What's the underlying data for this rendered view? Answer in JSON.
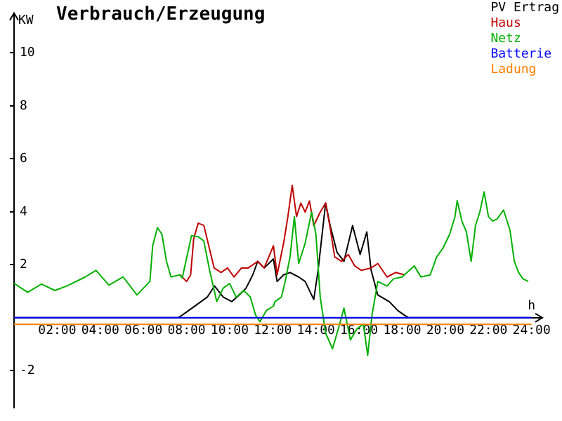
{
  "chart_data": {
    "type": "line",
    "title": "Verbrauch/Erzeugung",
    "xlabel": "h",
    "ylabel": "KW",
    "legend": "top right",
    "marker": "none",
    "xlim": [
      0,
      24.5
    ],
    "ylim": [
      -3.4,
      11.5
    ],
    "xticks": [
      {
        "value": 2,
        "label": "02:00"
      },
      {
        "value": 4,
        "label": "04:00"
      },
      {
        "value": 6,
        "label": "06:00"
      },
      {
        "value": 8,
        "label": "08:00"
      },
      {
        "value": 10,
        "label": "10:00"
      },
      {
        "value": 12,
        "label": "12:00"
      },
      {
        "value": 14,
        "label": "14:00"
      },
      {
        "value": 16,
        "label": "16:00"
      },
      {
        "value": 18,
        "label": "18:00"
      },
      {
        "value": 20,
        "label": "20:00"
      },
      {
        "value": 22,
        "label": "22:00"
      },
      {
        "value": 24,
        "label": "24:00"
      }
    ],
    "yticks": [
      -2,
      2,
      4,
      6,
      8,
      10
    ],
    "series": [
      {
        "name": "PV Ertrag",
        "color": "#000000",
        "x": [
          0,
          7.6,
          7.8,
          8.4,
          8.96,
          9.3,
          9.7,
          10.1,
          10.44,
          10.76,
          11.07,
          11.3,
          11.6,
          12.03,
          12.2,
          12.5,
          12.8,
          13.2,
          13.5,
          13.9,
          14.1,
          14.45,
          14.66,
          14.98,
          15.3,
          15.7,
          16.05,
          16.36,
          16.56,
          16.87,
          17.4,
          17.8,
          18.1,
          18.3,
          24
        ],
        "values": [
          0,
          0,
          0.1,
          0.45,
          0.78,
          1.2,
          0.78,
          0.61,
          0.86,
          1.12,
          1.62,
          2.13,
          1.88,
          2.22,
          1.37,
          1.62,
          1.71,
          1.54,
          1.37,
          0.69,
          1.79,
          4.33,
          3.48,
          2.47,
          2.13,
          3.48,
          2.39,
          3.24,
          1.79,
          0.86,
          0.61,
          0.27,
          0.1,
          0,
          0
        ]
      },
      {
        "name": "Haus",
        "color": "#c00000",
        "x": [
          7.7,
          8.0,
          8.19,
          8.33,
          8.54,
          8.8,
          9.03,
          9.28,
          9.6,
          9.9,
          10.2,
          10.55,
          10.86,
          11.3,
          11.6,
          12.03,
          12.2,
          12.5,
          12.7,
          12.9,
          13.1,
          13.3,
          13.5,
          13.7,
          13.9,
          14.2,
          14.45,
          14.66,
          14.87,
          15.19,
          15.5,
          15.8,
          16.1,
          16.56,
          16.87,
          17.3,
          17.7,
          18.1
        ],
        "values": [
          1.62,
          1.37,
          1.62,
          2.98,
          3.57,
          3.49,
          2.72,
          1.88,
          1.71,
          1.88,
          1.54,
          1.88,
          1.88,
          2.13,
          1.88,
          2.72,
          1.62,
          2.81,
          3.82,
          5.0,
          3.82,
          4.33,
          3.99,
          4.41,
          3.48,
          3.99,
          4.33,
          3.4,
          2.3,
          2.13,
          2.39,
          1.96,
          1.79,
          1.88,
          2.05,
          1.54,
          1.71,
          1.62
        ]
      },
      {
        "name": "Netz",
        "color": "#00b000",
        "x": [
          0,
          0.63,
          1.27,
          1.9,
          2.5,
          3.3,
          3.8,
          4.4,
          5.06,
          5.7,
          6.3,
          6.43,
          6.65,
          6.86,
          7.07,
          7.28,
          7.7,
          7.8,
          8.23,
          8.54,
          8.8,
          9.07,
          9.4,
          9.7,
          10.0,
          10.3,
          10.65,
          10.96,
          11.2,
          11.4,
          11.7,
          12.03,
          12.1,
          12.4,
          12.6,
          12.8,
          13.0,
          13.2,
          13.5,
          13.8,
          14.0,
          14.2,
          14.45,
          14.77,
          15.1,
          15.3,
          15.6,
          15.9,
          16.2,
          16.4,
          16.6,
          16.87,
          17.3,
          17.6,
          18.0,
          18.1,
          18.56,
          18.87,
          19.3,
          19.6,
          19.9,
          20.2,
          20.45,
          20.55,
          20.77,
          20.98,
          21.2,
          21.4,
          21.6,
          21.8,
          22.0,
          22.2,
          22.4,
          22.7,
          23.0,
          23.2,
          23.4,
          23.6,
          23.85
        ],
        "values": [
          1.3,
          0.96,
          1.27,
          1.03,
          1.22,
          1.54,
          1.79,
          1.23,
          1.54,
          0.86,
          1.37,
          2.72,
          3.4,
          3.15,
          2.13,
          1.54,
          1.62,
          1.5,
          3.1,
          3.06,
          2.9,
          1.79,
          0.61,
          1.12,
          1.29,
          0.78,
          1.03,
          0.78,
          0.1,
          -0.15,
          0.27,
          0.44,
          0.61,
          0.78,
          1.47,
          2.3,
          3.82,
          2.05,
          2.81,
          3.99,
          3.15,
          0.78,
          -0.58,
          -1.17,
          -0.24,
          0.36,
          -0.84,
          -0.42,
          -0.24,
          -1.42,
          0.1,
          1.37,
          1.2,
          1.47,
          1.54,
          1.62,
          1.96,
          1.54,
          1.62,
          2.3,
          2.64,
          3.15,
          3.82,
          4.42,
          3.65,
          3.24,
          2.13,
          3.48,
          3.99,
          4.75,
          3.82,
          3.65,
          3.73,
          4.07,
          3.31,
          2.13,
          1.71,
          1.47,
          1.37
        ]
      },
      {
        "name": "Batterie",
        "color": "#0000ff",
        "x": [
          0,
          24
        ],
        "values": [
          0,
          0
        ]
      },
      {
        "name": "Ladung",
        "color": "#ff8000",
        "x": [
          0,
          24
        ],
        "values": [
          -0.25,
          -0.25
        ]
      }
    ]
  }
}
